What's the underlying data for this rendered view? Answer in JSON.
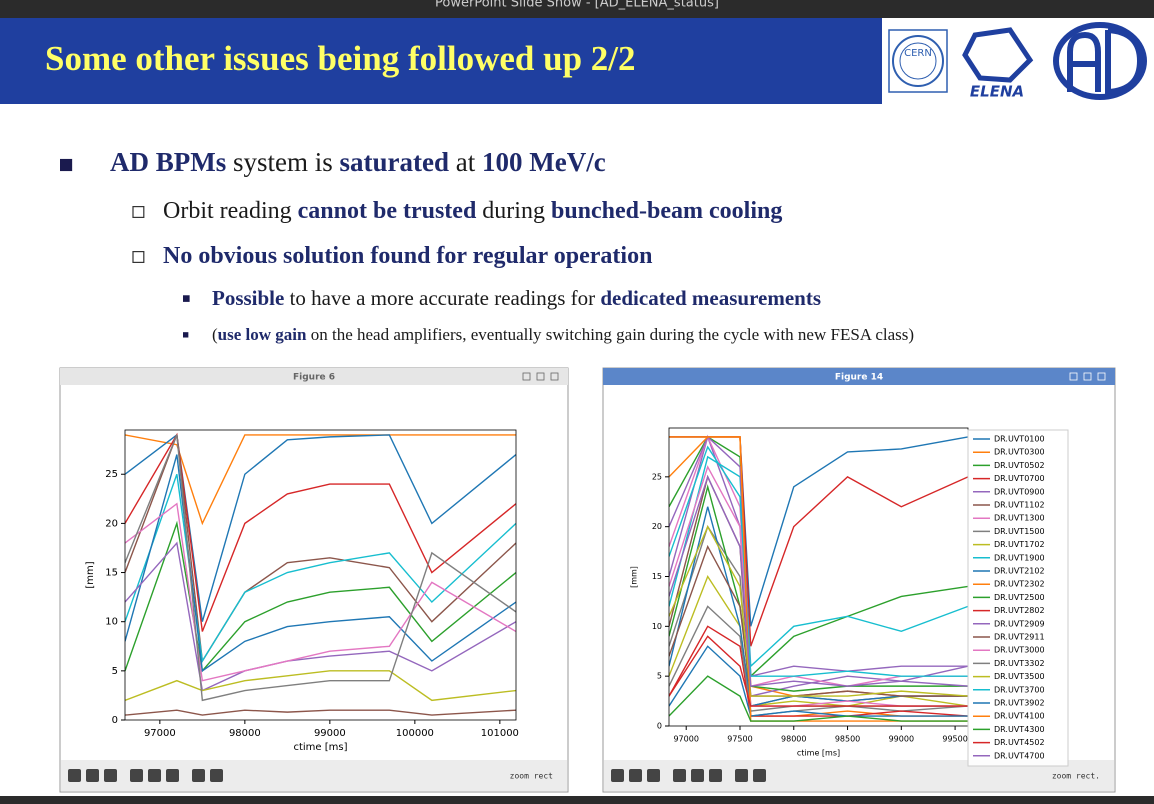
{
  "window_title": "PowerPoint Slide Show - [AD_ELENA_status]",
  "slide": {
    "title": "Some other issues being followed up 2/2",
    "logos": [
      "CERN",
      "ELENA"
    ],
    "bullets": [
      {
        "level": 1,
        "runs": [
          {
            "text": "AD BPMs",
            "bold": true
          },
          {
            "text": " system is "
          },
          {
            "text": "saturated",
            "bold": true
          },
          {
            "text": " at "
          },
          {
            "text": "100 MeV/c",
            "bold": true
          }
        ]
      },
      {
        "level": 2,
        "runs": [
          {
            "text": "Orbit reading "
          },
          {
            "text": "cannot be trusted",
            "bold": true
          },
          {
            "text": " during "
          },
          {
            "text": "bunched-beam cooling",
            "bold": true
          }
        ]
      },
      {
        "level": 2,
        "runs": [
          {
            "text": "No obvious solution found for regular operation",
            "bold": true
          }
        ]
      },
      {
        "level": 3,
        "runs": [
          {
            "text": "Possible",
            "bold": true
          },
          {
            "text": " to have a more accurate readings for "
          },
          {
            "text": "dedicated measurements",
            "bold": true
          }
        ]
      },
      {
        "level": 3,
        "runs": [
          {
            "text": "("
          },
          {
            "text": "use low gain",
            "bold": true
          },
          {
            "text": " on the head amplifiers, eventually switching gain during the cycle with new FESA class)"
          }
        ]
      }
    ]
  },
  "chart_data": [
    {
      "type": "line",
      "window_title": "Figure 6",
      "toolbar_mode": "zoom rect",
      "xlabel": "ctime [ms]",
      "ylabel": "[mm]",
      "x": [
        96590,
        97200,
        97500,
        98000,
        98500,
        99000,
        99700,
        100200,
        101190
      ],
      "xlim": [
        96590,
        101190
      ],
      "ylim": [
        0,
        29.5
      ],
      "xticks": [
        97000,
        98000,
        99000,
        100000,
        101000
      ],
      "yticks": [
        0,
        5,
        10,
        15,
        20,
        25
      ],
      "series": [
        {
          "color": "#ff7f0e",
          "values": [
            29,
            28,
            20,
            29,
            29,
            29,
            29,
            29,
            29
          ]
        },
        {
          "color": "#1f77b4",
          "values": [
            25,
            29,
            10,
            25,
            28.5,
            28.8,
            29,
            20,
            27
          ]
        },
        {
          "color": "#d62728",
          "values": [
            20,
            29,
            9,
            20,
            23,
            24,
            24,
            15,
            22
          ]
        },
        {
          "color": "#8c564b",
          "values": [
            15,
            29,
            6,
            13,
            16,
            16.5,
            15.5,
            10,
            18
          ]
        },
        {
          "color": "#17becf",
          "values": [
            10,
            25,
            6,
            13,
            15,
            16,
            17,
            12,
            20
          ]
        },
        {
          "color": "#2ca02c",
          "values": [
            5,
            20,
            5,
            10,
            12,
            13,
            13.5,
            8,
            15
          ]
        },
        {
          "color": "#1f77b4",
          "values": [
            8,
            27,
            5,
            8,
            9.5,
            10,
            10.5,
            6,
            12
          ]
        },
        {
          "color": "#9467bd",
          "values": [
            12,
            18,
            3,
            5,
            6,
            6.5,
            7,
            5,
            10
          ]
        },
        {
          "color": "#e377c2",
          "values": [
            18,
            22,
            4,
            5,
            6,
            7,
            7.5,
            14,
            9
          ]
        },
        {
          "color": "#bcbd22",
          "values": [
            2,
            4,
            3,
            4,
            4.5,
            5,
            5,
            2,
            3
          ]
        },
        {
          "color": "#7f7f7f",
          "values": [
            16,
            29,
            2,
            3,
            3.5,
            4,
            4,
            17,
            11
          ]
        },
        {
          "color": "#8c564b",
          "values": [
            0.5,
            1,
            0.5,
            1,
            0.8,
            1,
            1,
            0.5,
            1
          ]
        }
      ]
    },
    {
      "type": "line",
      "window_title": "Figure 14",
      "toolbar_mode": "zoom rect.",
      "xlabel": "ctime [ms]",
      "ylabel": "[mm]",
      "x": [
        96840,
        97200,
        97500,
        97600,
        98000,
        98500,
        99000,
        99620
      ],
      "xlim": [
        96840,
        99620
      ],
      "ylim": [
        0,
        29.9
      ],
      "xticks": [
        97000,
        97500,
        98000,
        98500,
        99000,
        99500
      ],
      "yticks": [
        0,
        5,
        10,
        15,
        20,
        25
      ],
      "legend": "upper right",
      "series": [
        {
          "name": "DR.UVT0100",
          "color": "#1f77b4",
          "values": [
            29,
            29,
            29,
            10,
            24,
            27.5,
            27.8,
            29
          ]
        },
        {
          "name": "DR.UVT0300",
          "color": "#ff7f0e",
          "values": [
            29,
            29,
            29,
            4,
            3,
            3.5,
            3,
            3
          ]
        },
        {
          "name": "DR.UVT0502",
          "color": "#2ca02c",
          "values": [
            22,
            29,
            27,
            5,
            9,
            11,
            13,
            14
          ]
        },
        {
          "name": "DR.UVT0700",
          "color": "#d62728",
          "values": [
            29,
            29,
            29,
            8,
            20,
            25,
            22,
            25
          ]
        },
        {
          "name": "DR.UVT0900",
          "color": "#9467bd",
          "values": [
            15,
            29,
            20,
            3,
            4,
            5,
            4.5,
            6
          ]
        },
        {
          "name": "DR.UVT1102",
          "color": "#8c564b",
          "values": [
            10,
            25,
            18,
            2,
            3,
            2.5,
            3,
            3
          ]
        },
        {
          "name": "DR.UVT1300",
          "color": "#e377c2",
          "values": [
            18,
            29,
            22,
            4,
            5,
            4,
            5,
            5
          ]
        },
        {
          "name": "DR.UVT1500",
          "color": "#7f7f7f",
          "values": [
            8,
            20,
            15,
            1,
            1.5,
            2,
            1.5,
            2
          ]
        },
        {
          "name": "DR.UVT1702",
          "color": "#bcbd22",
          "values": [
            5,
            15,
            10,
            2,
            2.5,
            2,
            3,
            2
          ]
        },
        {
          "name": "DR.UVT1900",
          "color": "#17becf",
          "values": [
            12,
            27,
            25,
            6,
            10,
            11,
            9.5,
            12
          ]
        },
        {
          "name": "DR.UVT2102",
          "color": "#1f77b4",
          "values": [
            6,
            22,
            10,
            2,
            3,
            2.5,
            3,
            3
          ]
        },
        {
          "name": "DR.UVT2302",
          "color": "#ff7f0e",
          "values": [
            29,
            29,
            29,
            1,
            1,
            1.5,
            1,
            1
          ]
        },
        {
          "name": "DR.UVT2500",
          "color": "#2ca02c",
          "values": [
            9,
            24,
            12,
            4,
            3.5,
            4,
            4,
            4
          ]
        },
        {
          "name": "DR.UVT2802",
          "color": "#d62728",
          "values": [
            3,
            10,
            8,
            1,
            1,
            1,
            1.5,
            1
          ]
        },
        {
          "name": "DR.UVT2909",
          "color": "#9467bd",
          "values": [
            20,
            29,
            26,
            5,
            6,
            5.5,
            6,
            6
          ]
        },
        {
          "name": "DR.UVT2911",
          "color": "#8c564b",
          "values": [
            7,
            18,
            12,
            3,
            3,
            3.5,
            3,
            3
          ]
        },
        {
          "name": "DR.UVT3000",
          "color": "#e377c2",
          "values": [
            14,
            26,
            20,
            2,
            2,
            2.5,
            2,
            2
          ]
        },
        {
          "name": "DR.UVT3302",
          "color": "#7f7f7f",
          "values": [
            4,
            12,
            9,
            1.5,
            2,
            2,
            2,
            2
          ]
        },
        {
          "name": "DR.UVT3500",
          "color": "#bcbd22",
          "values": [
            11,
            20,
            14,
            3,
            3,
            3,
            3.5,
            3
          ]
        },
        {
          "name": "DR.UVT3700",
          "color": "#17becf",
          "values": [
            17,
            28,
            23,
            5,
            5,
            5.5,
            5,
            5
          ]
        },
        {
          "name": "DR.UVT3902",
          "color": "#1f77b4",
          "values": [
            2,
            8,
            5,
            1,
            1.5,
            1,
            1,
            1
          ]
        },
        {
          "name": "DR.UVT4100",
          "color": "#ff7f0e",
          "values": [
            25,
            29,
            29,
            0.5,
            0.5,
            0.5,
            0.5,
            0.5
          ]
        },
        {
          "name": "DR.UVT4300",
          "color": "#2ca02c",
          "values": [
            1,
            5,
            3,
            0.5,
            0.5,
            1,
            0.5,
            0.5
          ]
        },
        {
          "name": "DR.UVT4502",
          "color": "#d62728",
          "values": [
            3,
            9,
            6,
            2,
            2,
            2,
            2,
            2
          ]
        },
        {
          "name": "DR.UVT4700",
          "color": "#9467bd",
          "values": [
            13,
            25,
            18,
            4,
            4.5,
            4,
            4.5,
            4
          ]
        }
      ]
    }
  ]
}
